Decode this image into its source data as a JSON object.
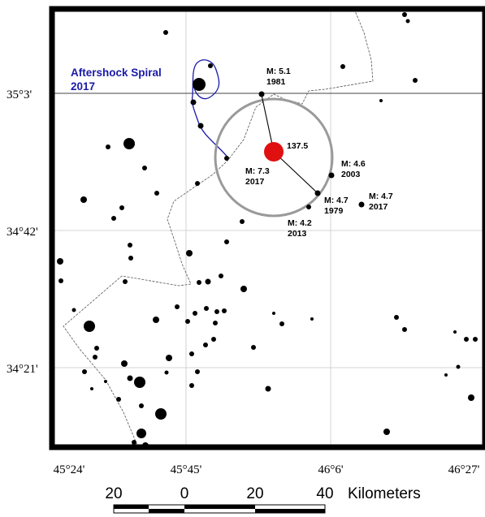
{
  "map": {
    "latitude_labels": [
      "35°3'",
      "34°42'",
      "34°21'"
    ],
    "longitude_labels": [
      "45°24'",
      "45°45'",
      "46°6'",
      "46°27'"
    ],
    "aftershock_spiral": {
      "label_line1": "Aftershock Spiral",
      "label_line2": "2017",
      "color": "#1a1aa8"
    },
    "mainshock": {
      "magnitude": "M: 7.3",
      "year": "2017",
      "azimuth_label": "137.5",
      "color": "#e01010"
    },
    "historic_events": [
      {
        "magnitude": "M: 5.1",
        "year": "1981"
      },
      {
        "magnitude": "M: 4.6",
        "year": "2003"
      },
      {
        "magnitude": "M: 4.7",
        "year": "1979"
      },
      {
        "magnitude": "M: 4.7",
        "year": "2017"
      },
      {
        "magnitude": "M: 4.2",
        "year": "2013"
      }
    ],
    "scale_bar": {
      "labels": [
        "20",
        "0",
        "20",
        "40"
      ],
      "unit": "Kilometers"
    }
  }
}
